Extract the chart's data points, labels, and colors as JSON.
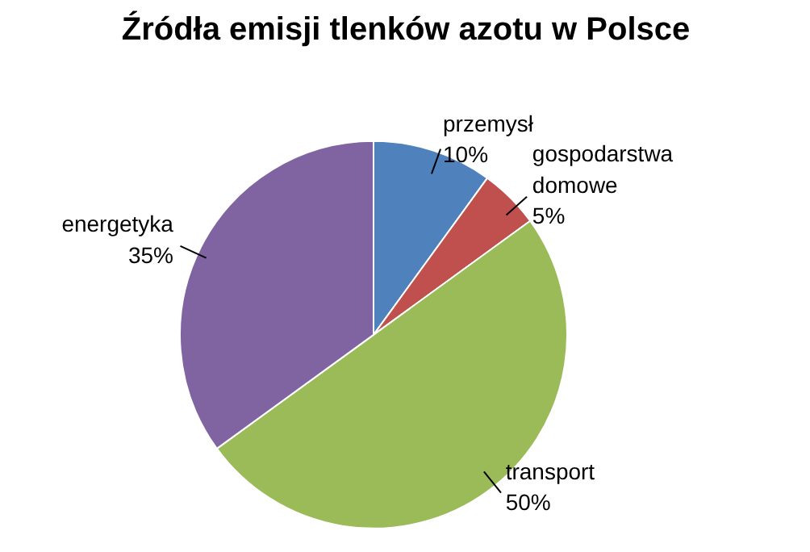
{
  "chart_data": {
    "type": "pie",
    "title": "Źródła emisji tlenków azotu w Polsce",
    "categories": [
      "przemysł",
      "gospodarstwa domowe",
      "transport",
      "energetyka"
    ],
    "values": [
      10,
      5,
      50,
      35
    ],
    "colors": [
      "#4f81bd",
      "#c0504d",
      "#9bbb59",
      "#8064a2"
    ],
    "value_labels": [
      "10%",
      "5%",
      "50%",
      "35%"
    ]
  }
}
